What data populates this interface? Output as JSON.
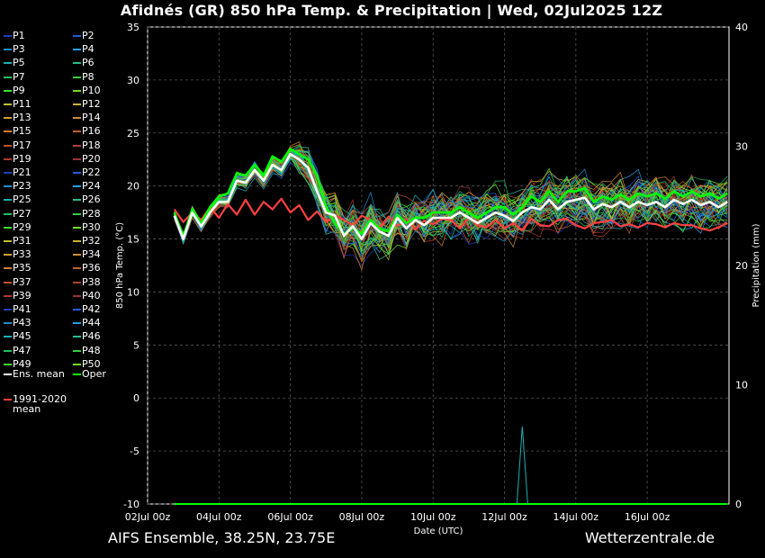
{
  "title": "Afidnés  (GR)  850 hPa Temp. & Precipitation | Wed, 02Jul2025 12Z",
  "footer_left": "AIFS Ensemble, 38.25N, 23.75E",
  "footer_right": "Wetterzentrale.de",
  "chart_data": {
    "type": "line",
    "xlabel": "Date (UTC)",
    "ylabel": "850 hPa Temp. (°C)",
    "ylabel_right": "Precipitation (mm)",
    "ylim": [
      -10,
      35
    ],
    "ylim_right": [
      0,
      40
    ],
    "yticks": [
      35,
      30,
      25,
      20,
      15,
      10,
      5,
      0,
      -5,
      -10
    ],
    "yticks_right": [
      40,
      30,
      20,
      10,
      0
    ],
    "xticks": [
      "02Jul 00z",
      "04Jul 00z",
      "06Jul 00z",
      "08Jul 00z",
      "10Jul 00z",
      "12Jul 00z",
      "14Jul 00z",
      "16Jul 00z"
    ],
    "x_hours": [
      18,
      24,
      30,
      36,
      42,
      48,
      54,
      60,
      66,
      72,
      78,
      84,
      90,
      96,
      102,
      108,
      114,
      120,
      126,
      132,
      138,
      144,
      150,
      156,
      162,
      168,
      174,
      180,
      186,
      192,
      198,
      204,
      210,
      216,
      222,
      228,
      234,
      240,
      246,
      252,
      258,
      264,
      270,
      276,
      282,
      288,
      294,
      300,
      306,
      312,
      318,
      324,
      330,
      336,
      342,
      348,
      354,
      360,
      366,
      372,
      378,
      384,
      390
    ],
    "grid": true,
    "legend": {
      "members": [
        "P1",
        "P2",
        "P3",
        "P4",
        "P5",
        "P6",
        "P7",
        "P8",
        "P9",
        "P10",
        "P11",
        "P12",
        "P13",
        "P14",
        "P15",
        "P16",
        "P17",
        "P18",
        "P19",
        "P20",
        "P21",
        "P22",
        "P23",
        "P24",
        "P25",
        "P26",
        "P27",
        "P28",
        "P29",
        "P30",
        "P31",
        "P32",
        "P33",
        "P34",
        "P35",
        "P36",
        "P37",
        "P38",
        "P39",
        "P40",
        "P41",
        "P42",
        "P43",
        "P44",
        "P45",
        "P46",
        "P47",
        "P48",
        "P49",
        "P50"
      ],
      "member_colors": [
        "#1f3fbf",
        "#1f5fdf",
        "#1f8fcf",
        "#1fa0e0",
        "#1fb0b0",
        "#1fc08f",
        "#1fbf5f",
        "#2fcf3f",
        "#3fdf2f",
        "#6fdf1f",
        "#bfbf2f",
        "#cfb02f",
        "#d0a030",
        "#d09030",
        "#d08030",
        "#c06030",
        "#c05030",
        "#b04030",
        "#b03a30",
        "#a03030",
        "#1f3fbf",
        "#1f5fdf",
        "#1f8fcf",
        "#1fa0e0",
        "#1fb0b0",
        "#1fc08f",
        "#1fbf5f",
        "#2fcf3f",
        "#3fdf2f",
        "#6fdf1f",
        "#bfbf2f",
        "#cfb02f",
        "#d0a030",
        "#d09030",
        "#d08030",
        "#c06030",
        "#c05030",
        "#b04030",
        "#b03a30",
        "#a03030",
        "#1f3fbf",
        "#1f5fdf",
        "#1f8fcf",
        "#1fa0e0",
        "#1fb0b0",
        "#1fc08f",
        "#1fbf5f",
        "#2fcf3f",
        "#3fdf2f",
        "#6fdf1f"
      ],
      "mean_label": "Ens. mean",
      "oper_label": "Oper",
      "clim_label_1": "1991-2020",
      "clim_label_2": "mean",
      "mean_color": "#ffffff",
      "oper_color": "#00ff00",
      "clim_color": "#ff4040"
    },
    "series": [
      {
        "name": "Ens. mean",
        "values": [
          17.2,
          15,
          17.5,
          16.2,
          17.5,
          18.5,
          18.5,
          20.5,
          20.3,
          21.5,
          20.5,
          22,
          21.5,
          23,
          22.5,
          21.7,
          19.5,
          17.5,
          17.2,
          15.3,
          16.2,
          15,
          16.5,
          15.7,
          15.3,
          17,
          16,
          16.8,
          16.3,
          17,
          17,
          17,
          17.5,
          17,
          16.5,
          17,
          17.5,
          17.2,
          16.7,
          17.5,
          18,
          17.8,
          18.7,
          17.8,
          18.5,
          18.7,
          18.9,
          17.8,
          18.3,
          18,
          18.5,
          18,
          18.5,
          18.2,
          18.5,
          18,
          18.7,
          18.3,
          18.7,
          18.2,
          18.5,
          18,
          18.5
        ]
      },
      {
        "name": "Oper",
        "values": [
          17.5,
          15.2,
          17.8,
          16.5,
          18,
          19,
          19.3,
          21.2,
          21,
          22,
          21,
          22.8,
          22.3,
          23.5,
          23,
          22.5,
          21,
          18,
          16.5,
          15.5,
          16,
          15.5,
          16.8,
          16,
          15.7,
          17.3,
          16.5,
          17,
          17,
          17.5,
          17.5,
          17.5,
          18,
          17.5,
          17,
          17.5,
          18,
          18,
          17.3,
          18,
          19,
          18.5,
          19.5,
          18.5,
          19.5,
          19.5,
          19.8,
          18.5,
          19,
          18.7,
          19.2,
          18.7,
          19.3,
          19,
          19.3,
          18.8,
          19.5,
          19,
          19.5,
          19,
          19.3,
          18.8,
          19.3
        ]
      },
      {
        "name": "1991-2020 mean",
        "values": [
          17.8,
          16.6,
          17.5,
          16.8,
          18,
          17,
          18.3,
          17.3,
          18.7,
          17.3,
          18.5,
          17.8,
          18.8,
          17.5,
          18.2,
          16.8,
          17.6,
          16.6,
          17.2,
          16.8,
          16.3,
          17.2,
          16.8,
          16.1,
          17.1,
          16.2,
          16.9,
          15.9,
          16.7,
          16.4,
          16.9,
          16.8,
          16,
          17,
          16.3,
          16.1,
          16.8,
          16,
          16.5,
          15.8,
          16.9,
          16.3,
          16.2,
          16.8,
          16.9,
          16.3,
          16,
          16.5,
          16.6,
          16.8,
          16.2,
          16.4,
          16.1,
          16.5,
          16.4,
          16.1,
          16.5,
          16.3,
          16.3,
          16,
          15.8,
          16.1,
          16.5
        ]
      }
    ],
    "precip_spike": {
      "x_hour": 252,
      "max_mm": 6.5
    }
  }
}
